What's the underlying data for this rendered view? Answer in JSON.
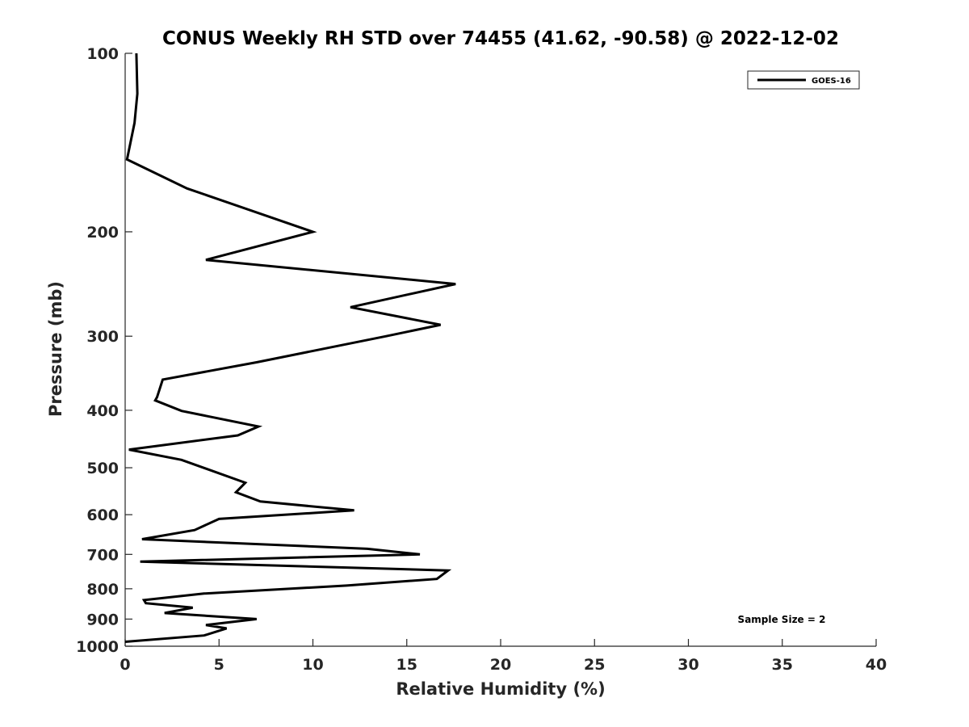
{
  "chart_data": {
    "type": "line",
    "title": "CONUS Weekly RH STD over 74455 (41.62, -90.58) @ 2022-12-02",
    "xlabel": "Relative Humidity (%)",
    "ylabel": "Pressure (mb)",
    "xlim": [
      0,
      40
    ],
    "ylim": [
      1000,
      100
    ],
    "yscale": "log",
    "y_reversed": true,
    "xticks": [
      0,
      5,
      10,
      15,
      20,
      25,
      30,
      35,
      40
    ],
    "xtick_labels": [
      "0",
      "5",
      "10",
      "15",
      "20",
      "25",
      "30",
      "35",
      "40"
    ],
    "yticks": [
      100,
      200,
      300,
      400,
      500,
      600,
      700,
      800,
      900,
      1000
    ],
    "ytick_labels": [
      "100",
      "200",
      "300",
      "400",
      "500",
      "600",
      "700",
      "800",
      "900",
      "1000"
    ],
    "grid": false,
    "legend_position": "top-right",
    "series": [
      {
        "name": "GOES-16",
        "color": "#000000",
        "x": [
          0.6,
          0.65,
          0.5,
          0.1,
          3.3,
          10.0,
          4.3,
          17.6,
          12.0,
          16.8,
          13.9,
          7.0,
          2.0,
          1.7,
          1.6,
          3.0,
          7.1,
          6.0,
          0.2,
          3.0,
          6.4,
          5.9,
          7.2,
          12.2,
          5.0,
          3.7,
          0.9,
          12.9,
          15.7,
          0.8,
          17.2,
          16.6,
          11.8,
          4.2,
          1.0,
          1.1,
          3.6,
          2.1,
          7.0,
          4.3,
          5.4,
          4.2,
          0.0
        ],
        "y": [
          100,
          117,
          131,
          151,
          169,
          200,
          223,
          245,
          268,
          287,
          300,
          332,
          355,
          380,
          385,
          401,
          426,
          441,
          466,
          485,
          530,
          550,
          570,
          590,
          610,
          637,
          660,
          685,
          700,
          720,
          745,
          770,
          790,
          815,
          836,
          846,
          861,
          879,
          900,
          921,
          933,
          959,
          983
        ]
      }
    ],
    "annotations": [
      "Sample Size = 2"
    ]
  }
}
